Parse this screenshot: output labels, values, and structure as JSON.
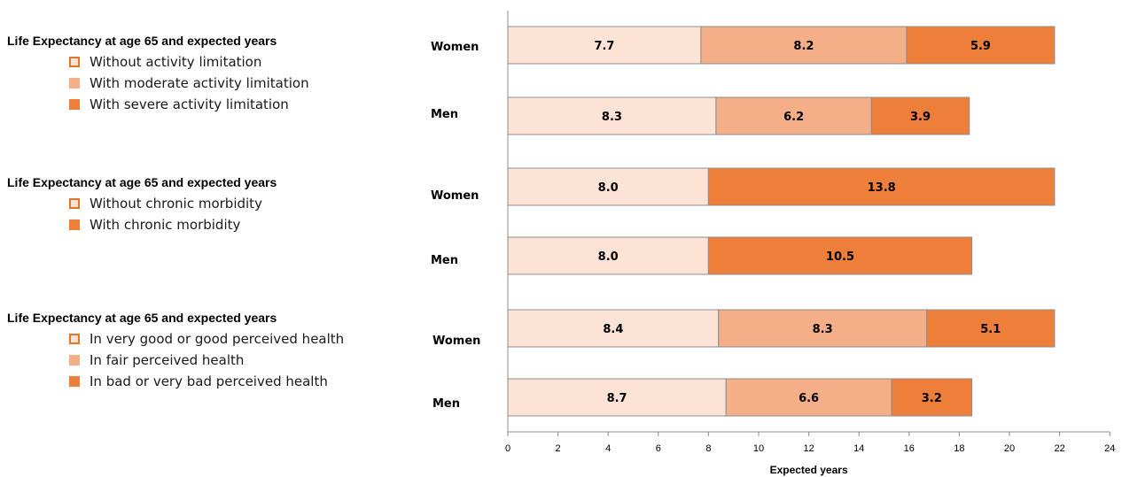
{
  "legends": [
    {
      "title": "Life Expectancy at age 65 and expected years",
      "items": [
        {
          "label": "Without activity limitation",
          "color": "#fde3d6",
          "border": "#e8742c"
        },
        {
          "label": "With moderate activity limitation",
          "color": "#f4ae88",
          "border": "#f4ae88"
        },
        {
          "label": "With severe activity limitation",
          "color": "#ee7f3b",
          "border": "#ee7f3b"
        }
      ]
    },
    {
      "title": "Life Expectancy at age 65 and expected years",
      "items": [
        {
          "label": "Without chronic morbidity",
          "color": "#fde3d6",
          "border": "#e8742c"
        },
        {
          "label": "With chronic morbidity",
          "color": "#ee7f3b",
          "border": "#ee7f3b"
        }
      ]
    },
    {
      "title": "Life Expectancy at age 65 and expected years",
      "items": [
        {
          "label": "In very good or good perceived health",
          "color": "#fde3d6",
          "border": "#e8742c"
        },
        {
          "label": "In fair perceived health",
          "color": "#f4ae88",
          "border": "#f4ae88"
        },
        {
          "label": "In bad or very bad perceived health",
          "color": "#ee7f3b",
          "border": "#ee7f3b"
        }
      ]
    }
  ],
  "chart_data": {
    "type": "bar",
    "orientation": "horizontal",
    "stacked": true,
    "xlabel": "Expected years",
    "xlim": [
      0,
      24
    ],
    "xticks": [
      0,
      2,
      4,
      6,
      8,
      10,
      12,
      14,
      16,
      18,
      20,
      22,
      24
    ],
    "grid": false,
    "legend_position": "left",
    "segment_colors": {
      "light": "#fde3d6",
      "medium": "#f4ae88",
      "dark": "#ee7f3b"
    },
    "rows": [
      {
        "label": "Women",
        "segments": [
          {
            "value": 7.7,
            "shade": "light"
          },
          {
            "value": 8.2,
            "shade": "medium"
          },
          {
            "value": 5.9,
            "shade": "dark"
          }
        ]
      },
      {
        "label": "Men",
        "segments": [
          {
            "value": 8.3,
            "shade": "light"
          },
          {
            "value": 6.2,
            "shade": "medium"
          },
          {
            "value": 3.9,
            "shade": "dark"
          }
        ]
      },
      {
        "label": "Women",
        "segments": [
          {
            "value": 8.0,
            "shade": "light"
          },
          {
            "value": 13.8,
            "shade": "dark"
          }
        ]
      },
      {
        "label": "Men",
        "segments": [
          {
            "value": 8.0,
            "shade": "light"
          },
          {
            "value": 10.5,
            "shade": "dark"
          }
        ]
      },
      {
        "label": "Women",
        "segments": [
          {
            "value": 8.4,
            "shade": "light"
          },
          {
            "value": 8.3,
            "shade": "medium"
          },
          {
            "value": 5.1,
            "shade": "dark"
          }
        ]
      },
      {
        "label": "Men",
        "segments": [
          {
            "value": 8.7,
            "shade": "light"
          },
          {
            "value": 6.6,
            "shade": "medium"
          },
          {
            "value": 3.2,
            "shade": "dark"
          }
        ]
      }
    ]
  }
}
